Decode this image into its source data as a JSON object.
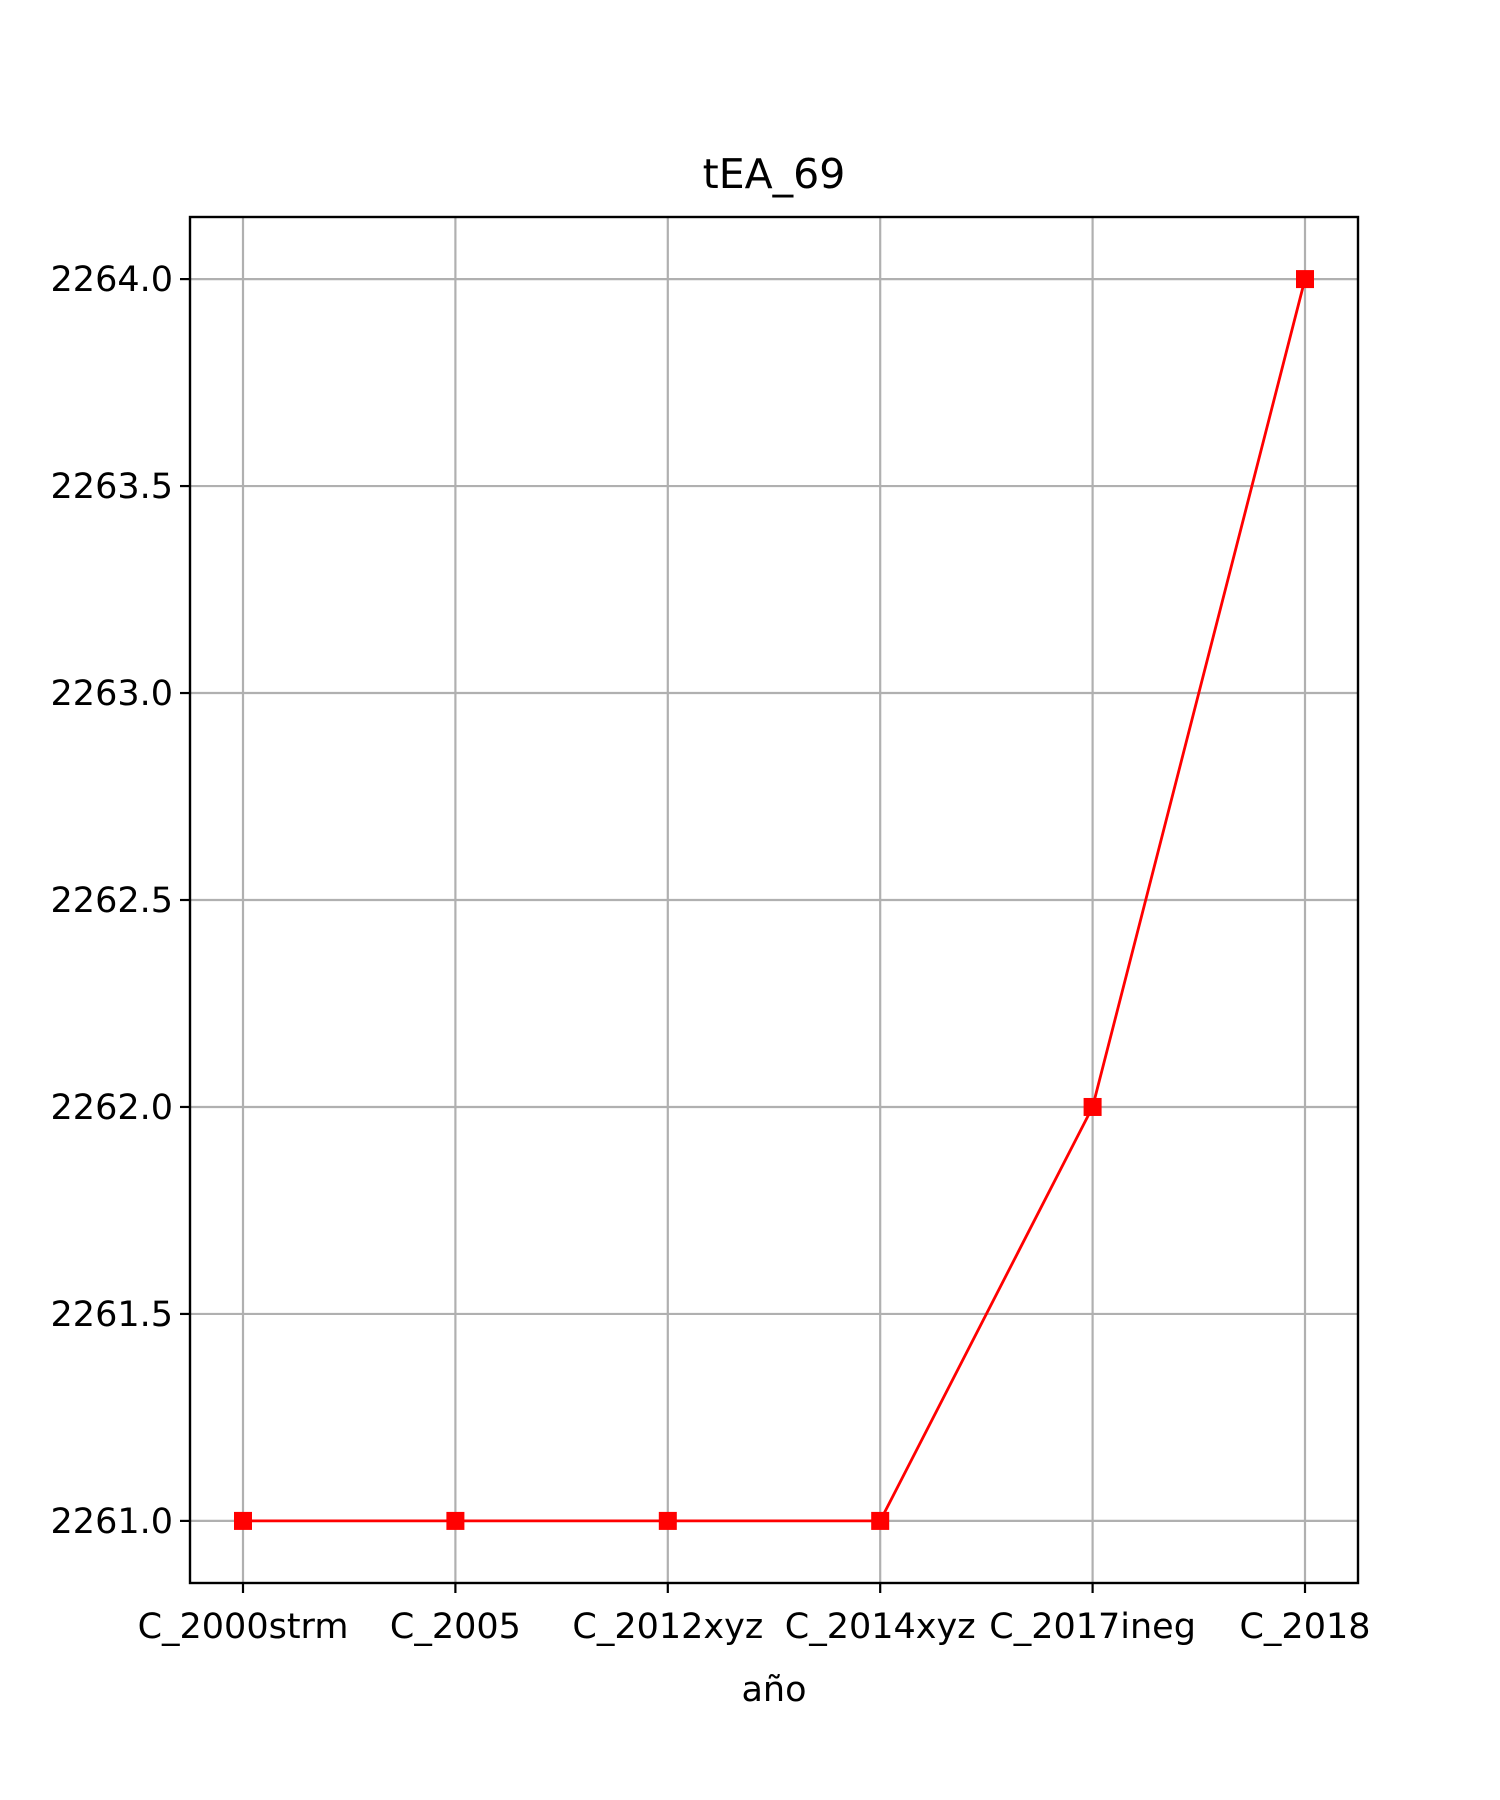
{
  "chart_data": {
    "type": "line",
    "title": "tEA_69",
    "xlabel": "año",
    "ylabel": "",
    "categories": [
      "C_2000strm",
      "C_2005",
      "C_2012xyz",
      "C_2014xyz",
      "C_2017ineg",
      "C_2018"
    ],
    "y_ticks": [
      "2261.0",
      "2261.5",
      "2262.0",
      "2262.5",
      "2263.0",
      "2263.5",
      "2264.0"
    ],
    "ylim": [
      2260.85,
      2264.15
    ],
    "grid": true,
    "legend": "none",
    "series": [
      {
        "values": [
          2261,
          2261,
          2261,
          2261,
          2262,
          2264
        ],
        "color": "#ff0000",
        "marker": "square"
      }
    ]
  }
}
